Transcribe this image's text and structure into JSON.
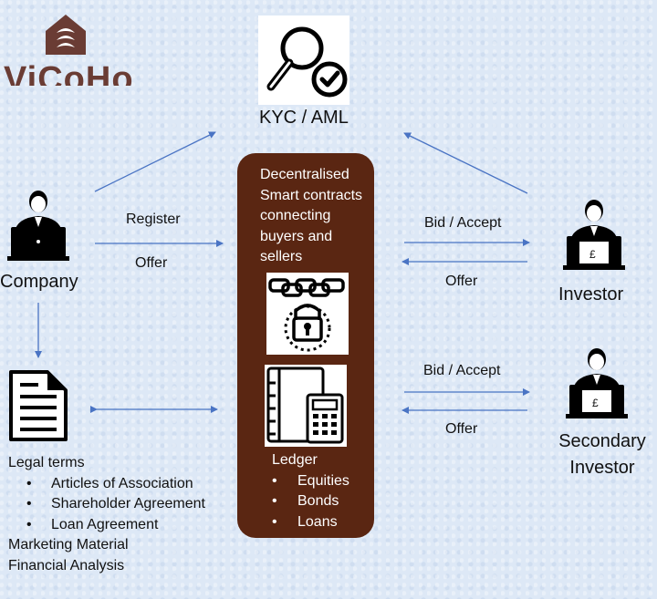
{
  "logo": {
    "text": "ViCoHo"
  },
  "kyc": {
    "label": "KYC / AML"
  },
  "company": {
    "label": "Company"
  },
  "investor": {
    "label": "Investor",
    "currency": "£"
  },
  "secondary_investor": {
    "line1": "Secondary",
    "line2": "Investor",
    "currency": "£"
  },
  "flows": {
    "register": "Register",
    "offer_company": "Offer",
    "bid_accept_investor": "Bid / Accept",
    "offer_investor": "Offer",
    "bid_accept_secondary": "Bid / Accept",
    "offer_secondary": "Offer"
  },
  "platform": {
    "description_lines": [
      "Decentralised",
      "Smart contracts",
      "connecting",
      "buyers and",
      "sellers"
    ],
    "ledger_title": "Ledger",
    "ledger_items": [
      "Equities",
      "Bonds",
      "Loans"
    ]
  },
  "legal": {
    "title": "Legal terms",
    "items": [
      "Articles of Association",
      "Shareholder Agreement",
      "Loan Agreement"
    ],
    "extra_lines": [
      "Marketing Material",
      "Financial Analysis"
    ]
  },
  "colors": {
    "arrow": "#4a74c4",
    "panel": "#5a2612",
    "logo": "#6a3c34",
    "background": "#dde8f6"
  },
  "icons": [
    "house-logo-icon",
    "magnifier-check-icon",
    "person-laptop-icon",
    "document-icon",
    "chain-lock-icon",
    "ledger-calculator-icon"
  ]
}
